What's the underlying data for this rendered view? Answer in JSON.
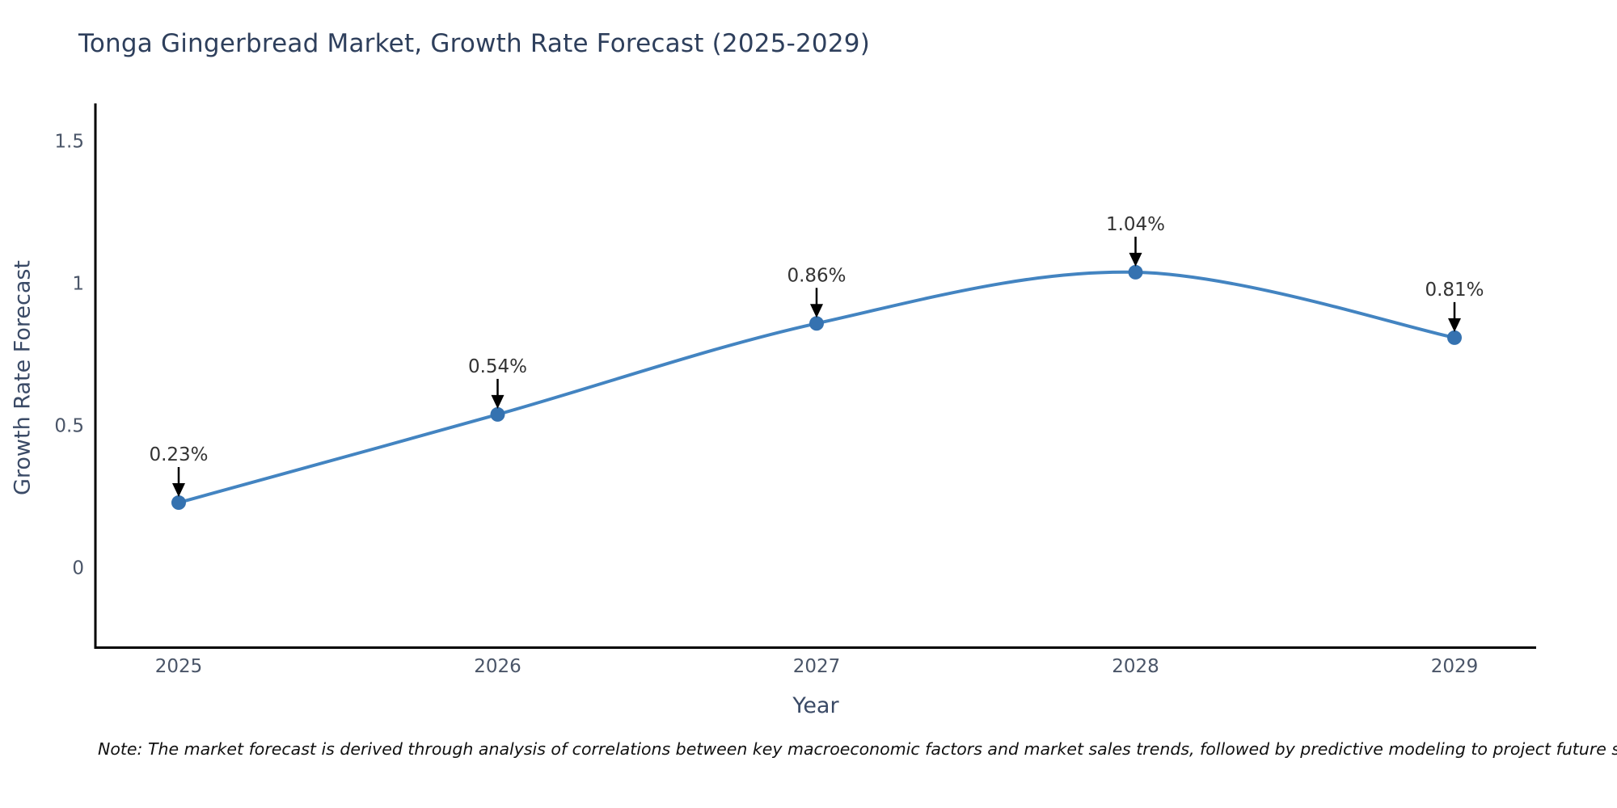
{
  "title": "Tonga Gingerbread Market, Growth Rate Forecast (2025-2029)",
  "note": "Note: The market forecast is derived through analysis of correlations between key macroeconomic factors and market sales trends, followed by predictive modeling to project future sales.",
  "chart_data": {
    "type": "line",
    "title": "Tonga Gingerbread Market, Growth Rate Forecast (2025-2029)",
    "xlabel": "Year",
    "ylabel": "Growth Rate Forecast",
    "categories": [
      "2025",
      "2026",
      "2027",
      "2028",
      "2029"
    ],
    "series": [
      {
        "name": "Growth Rate Forecast",
        "values": [
          0.23,
          0.54,
          0.86,
          1.04,
          0.81
        ],
        "point_labels": [
          "0.23%",
          "0.54%",
          "0.86%",
          "1.04%",
          "0.81%"
        ]
      }
    ],
    "line_shape": "spline",
    "markers": true,
    "grid": false,
    "legend": "none",
    "ylim": [
      -0.28,
      1.56
    ],
    "yticks": [
      0,
      0.5,
      1,
      1.5
    ],
    "ytick_labels": [
      "0",
      "0.5",
      "1",
      "1.5"
    ],
    "colors": {
      "line": "#4384c1",
      "marker": "#3572b0",
      "annotation_text": "#333333",
      "annotation_arrow": "#000000",
      "axis_line": "#000000",
      "title_text": "#2e3f5c",
      "axis_title_text": "#3a4a66",
      "tick_text": "#4a5568",
      "background": "#ffffff"
    }
  }
}
